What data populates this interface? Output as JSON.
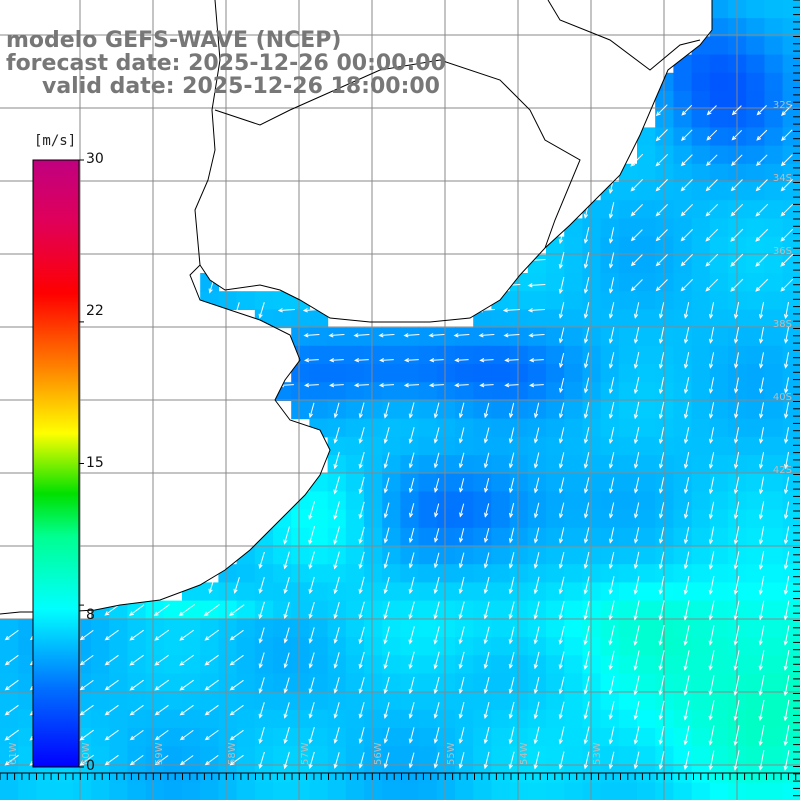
{
  "title": {
    "line1": "modelo GEFS-WAVE (NCEP)",
    "line2": "forecast date: 2025-12-26 00:00:00",
    "line3": "valid date: 2025-12-26 18:00:00"
  },
  "colorbar": {
    "units": "[m/s]",
    "min": 0,
    "max": 30,
    "ticks": [
      {
        "value": 30,
        "label": "30"
      },
      {
        "value": 22,
        "label": "22"
      },
      {
        "value": 15,
        "label": "15"
      },
      {
        "value": 8,
        "label": "8"
      },
      {
        "value": 0,
        "label": "0"
      }
    ],
    "colors": [
      "#0000ff",
      "#0080ff",
      "#00e0ff",
      "#00ffc0",
      "#00ff00",
      "#ffff00",
      "#ff8000",
      "#ff0000",
      "#c00080"
    ]
  },
  "map": {
    "lat_labels": [
      "32S",
      "34S",
      "36S",
      "38S",
      "40S",
      "42S"
    ],
    "lon_labels": [
      "61W",
      "60W",
      "59W",
      "58W",
      "57W",
      "56W",
      "55W",
      "54W",
      "53W"
    ],
    "land_color": "#ffffff",
    "grid_color": "#888888",
    "arrow_color": "#ffffff",
    "dominant_wind_direction": "south-southwest (toward)",
    "wind_speed_range_ms": [
      3,
      13
    ]
  }
}
